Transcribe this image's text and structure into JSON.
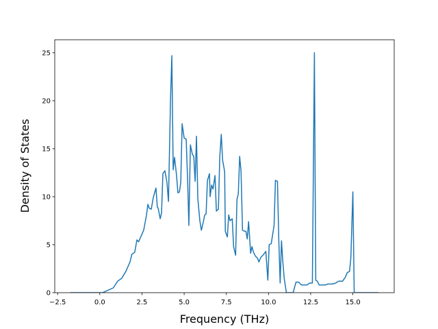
{
  "chart_data": {
    "type": "line",
    "xlabel": "Frequency (THz)",
    "ylabel": "Density of States",
    "x": [
      -1.75,
      0.16,
      0.8,
      1.06,
      1.3,
      1.54,
      1.79,
      1.9,
      2.07,
      2.2,
      2.3,
      2.6,
      2.76,
      2.85,
      2.93,
      3.05,
      3.17,
      3.25,
      3.33,
      3.41,
      3.46,
      3.58,
      3.66,
      3.74,
      3.86,
      3.98,
      4.07,
      4.19,
      4.27,
      4.35,
      4.43,
      4.55,
      4.63,
      4.72,
      4.8,
      4.88,
      5.0,
      5.12,
      5.2,
      5.28,
      5.37,
      5.49,
      5.57,
      5.65,
      5.73,
      5.81,
      5.93,
      6.02,
      6.14,
      6.22,
      6.3,
      6.38,
      6.5,
      6.54,
      6.63,
      6.71,
      6.83,
      6.91,
      7.03,
      7.11,
      7.2,
      7.28,
      7.4,
      7.44,
      7.56,
      7.64,
      7.72,
      7.85,
      7.93,
      8.05,
      8.13,
      8.21,
      8.29,
      8.37,
      8.46,
      8.58,
      8.66,
      8.74,
      8.82,
      8.94,
      9.02,
      9.11,
      9.23,
      9.35,
      9.43,
      9.55,
      9.67,
      9.84,
      9.96,
      10.04,
      10.16,
      10.24,
      10.33,
      10.41,
      10.53,
      10.61,
      10.69,
      10.77,
      10.85,
      10.93,
      11.06,
      11.46,
      11.63,
      11.79,
      11.95,
      12.28,
      12.44,
      12.6,
      12.72,
      12.8,
      12.89,
      13.0,
      13.37,
      13.5,
      13.78,
      13.98,
      14.15,
      14.39,
      14.55,
      14.67,
      14.8,
      14.88,
      15.0,
      15.08,
      16.54
    ],
    "series": [
      {
        "color": "#1f77b4",
        "values": [
          0,
          0,
          0.5,
          1.2,
          1.5,
          2.2,
          3.2,
          4.0,
          4.2,
          5.5,
          5.3,
          6.5,
          8.0,
          9.2,
          8.8,
          8.7,
          9.9,
          10.4,
          10.9,
          8.9,
          8.8,
          7.7,
          8.3,
          12.4,
          12.7,
          11.5,
          9.5,
          20,
          24.7,
          12.8,
          14.1,
          12.2,
          10.4,
          10.5,
          11.5,
          17.6,
          16.1,
          16.0,
          12.0,
          7.0,
          15.4,
          14.4,
          14.2,
          11.6,
          16.3,
          9.8,
          7.5,
          6.5,
          7.4,
          8.1,
          8.2,
          11.7,
          12.4,
          10.0,
          11.2,
          10.8,
          12.2,
          8.5,
          8.7,
          14.1,
          16.5,
          13.8,
          12.6,
          6.4,
          5.8,
          8.1,
          7.5,
          7.7,
          4.8,
          3.9,
          9.7,
          10.3,
          14.2,
          12.7,
          6.5,
          6.4,
          6.4,
          5.6,
          7.4,
          4.1,
          4.8,
          4.2,
          3.8,
          3.6,
          3.2,
          3.7,
          3.9,
          4.3,
          1.3,
          5.0,
          5.1,
          6.0,
          7.0,
          11.7,
          11.6,
          5.5,
          1.0,
          5.4,
          3.2,
          1.5,
          0,
          0,
          1.1,
          1.1,
          0.8,
          0.8,
          1.0,
          1.0,
          25.0,
          1.3,
          1.2,
          0.8,
          0.8,
          0.9,
          0.9,
          1.0,
          1.2,
          1.2,
          1.6,
          2.1,
          2.2,
          3.6,
          10.5,
          0,
          0
        ]
      }
    ],
    "xlim": [
      -2.67,
      17.45
    ],
    "ylim": [
      0,
      26.35
    ],
    "xticks": [
      {
        "value": -2.5,
        "label": "−2.5"
      },
      {
        "value": 0,
        "label": "0.0"
      },
      {
        "value": 2.5,
        "label": "2.5"
      },
      {
        "value": 5,
        "label": "5.0"
      },
      {
        "value": 7.5,
        "label": "7.5"
      },
      {
        "value": 10,
        "label": "10.0"
      },
      {
        "value": 12.5,
        "label": "12.5"
      },
      {
        "value": 15,
        "label": "15.0"
      }
    ],
    "yticks": [
      0,
      5,
      10,
      15,
      20,
      25
    ]
  }
}
